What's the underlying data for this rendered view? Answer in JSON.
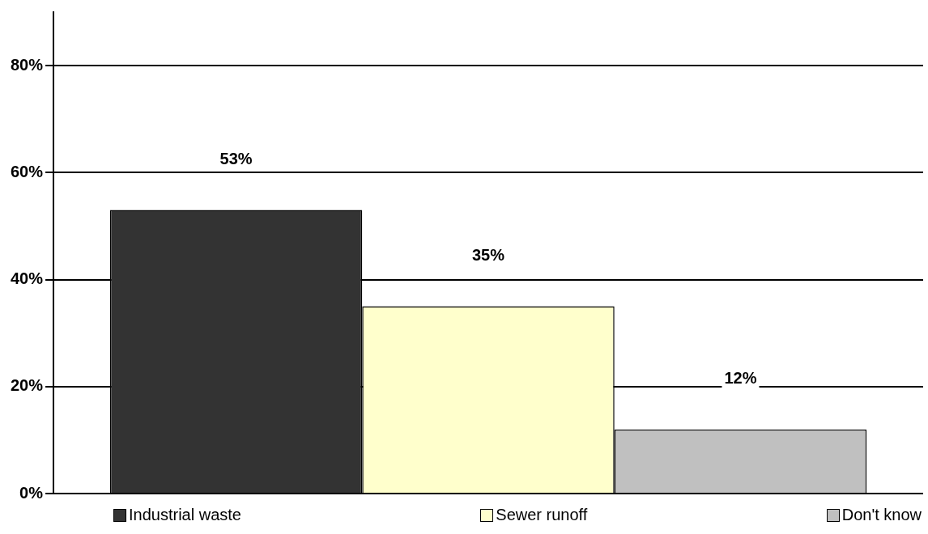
{
  "chart_data": {
    "type": "bar",
    "categories": [
      null
    ],
    "series": [
      {
        "name": "Industrial waste",
        "color": "#333333",
        "values": [
          53
        ],
        "value_labels": [
          "53%"
        ]
      },
      {
        "name": "Sewer runoff",
        "color": "#ffffcc",
        "values": [
          35
        ],
        "value_labels": [
          "35%"
        ]
      },
      {
        "name": "Don't know",
        "color": "#c0c0c0",
        "values": [
          12
        ],
        "value_labels": [
          "12%"
        ]
      }
    ],
    "ylim": [
      0,
      90
    ],
    "yticks": [
      {
        "value": 0,
        "label": "0%"
      },
      {
        "value": 20,
        "label": "20%"
      },
      {
        "value": 40,
        "label": "40%"
      },
      {
        "value": 60,
        "label": "60%"
      },
      {
        "value": 80,
        "label": "80%"
      }
    ],
    "grid": "y",
    "legend": "bottom"
  }
}
